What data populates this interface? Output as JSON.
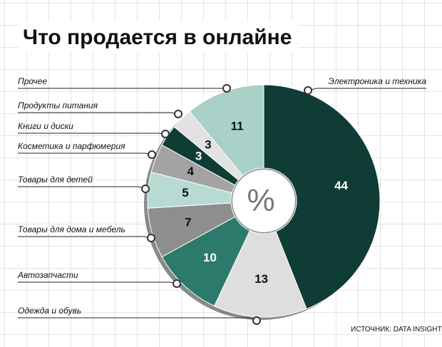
{
  "chart_data": {
    "type": "pie",
    "title": "Что продается в онлайне",
    "center_label": "%",
    "source": "ИСТОЧНИК: DATA INSIGHT",
    "categories": [
      "Электроника и техника",
      "Одежда и обувь",
      "Автозапчасти",
      "Товары для дома и мебель",
      "Товары для детей",
      "Косметика и парфюмерия",
      "Книги и диски",
      "Продукты питания",
      "Прочее"
    ],
    "values": [
      44,
      13,
      10,
      7,
      5,
      4,
      3,
      3,
      11
    ],
    "colors": [
      "#0f3d36",
      "#dedede",
      "#2b7a6c",
      "#8e8e8e",
      "#b7dbd3",
      "#a3a3a3",
      "#0f3d36",
      "#e2e2e2",
      "#a9d1c8"
    ]
  }
}
